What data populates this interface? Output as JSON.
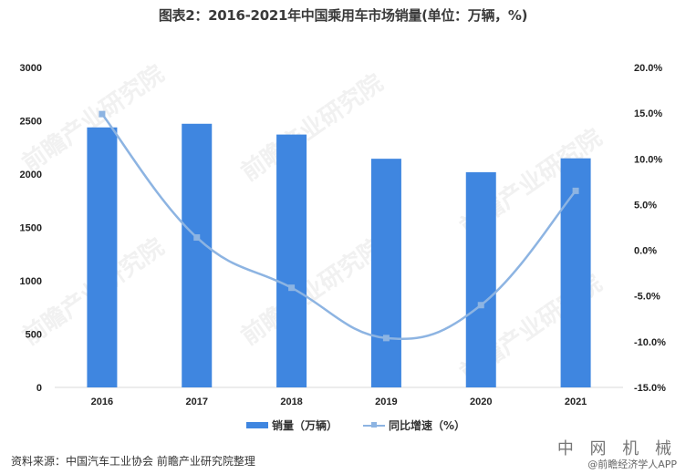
{
  "title": "图表2：2016-2021年中国乘用车市场销量(单位：万辆，%)",
  "chart_data": {
    "type": "bar+line",
    "title": "图表2：2016-2021年中国乘用车市场销量(单位：万辆，%)",
    "categories": [
      "2016",
      "2017",
      "2018",
      "2019",
      "2020",
      "2021"
    ],
    "series": [
      {
        "name": "销量（万辆）",
        "type": "bar",
        "axis": "left",
        "color": "#3F86E0",
        "values": [
          2438,
          2472,
          2371,
          2144,
          2018,
          2148
        ]
      },
      {
        "name": "同比增速（%）",
        "type": "line",
        "axis": "right",
        "color": "#8DB4E2",
        "values": [
          14.9,
          1.4,
          -4.1,
          -9.6,
          -6.0,
          6.5
        ]
      }
    ],
    "left_axis": {
      "min": 0,
      "max": 3000,
      "step": 500,
      "ticks": [
        "0",
        "500",
        "1000",
        "1500",
        "2000",
        "2500",
        "3000"
      ]
    },
    "right_axis": {
      "min": -15,
      "max": 20,
      "step": 5,
      "ticks": [
        "-15.0%",
        "-10.0%",
        "-5.0%",
        "0.0%",
        "5.0%",
        "10.0%",
        "15.0%",
        "20.0%"
      ]
    },
    "grid": false,
    "legend_position": "bottom"
  },
  "legend": {
    "bar_label": "销量（万辆）",
    "line_label": "同比增速（%）"
  },
  "source": "资料来源：中国汽车工业协会 前瞻产业研究院整理",
  "watermarks": {
    "corner_big": "中 网 机 械",
    "corner_small": "@前瞻经济学人APP",
    "chart": "前瞻产业研究院"
  }
}
